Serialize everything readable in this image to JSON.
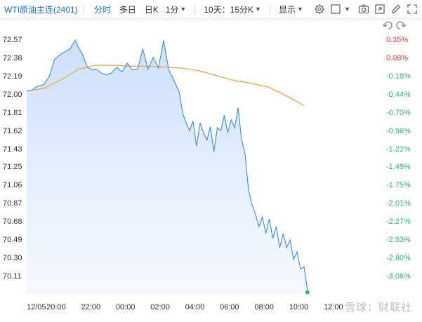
{
  "toolbar": {
    "title": "WTI原油主连(2401)",
    "tabs": [
      {
        "label": "分时",
        "active": true
      },
      {
        "label": "多日",
        "active": false
      },
      {
        "label": "日K",
        "active": false
      }
    ],
    "period_select": "1分",
    "range_select": "10天：15分K",
    "display_select": "显示",
    "icons": [
      "gear-icon",
      "square-checkbox-icon",
      "camera-icon",
      "expand-icon",
      "pencil-icon",
      "fullscreen-icon"
    ]
  },
  "chart_controls": {
    "icons": [
      "undo-icon",
      "redo-icon"
    ]
  },
  "watermark": "雪球：财联社",
  "colors": {
    "price_line": "#3a8ee6",
    "area_fill_top": "#c9ddfb",
    "avg_line": "#f0a040",
    "pct_positive": "#e03c3c",
    "pct_negative": "#2bb673",
    "last_point": "#2bb673",
    "tick_text": "#333333"
  },
  "chart_data": {
    "type": "line",
    "prev_close": 72.32,
    "ylim": [
      69.92,
      72.57
    ],
    "y_ticks": [
      72.57,
      72.38,
      72.19,
      72.0,
      71.81,
      71.62,
      71.43,
      71.25,
      71.06,
      70.87,
      70.68,
      70.49,
      70.3,
      70.11
    ],
    "y_tick_labels": [
      "72.57",
      "72.38",
      "72.19",
      "72.00",
      "71.81",
      "71.62",
      "71.43",
      "71.25",
      "71.06",
      "70.87",
      "70.68",
      "70.49",
      "70.30",
      "70.11"
    ],
    "pct_tick_labels": [
      "0.35%",
      "0.08%",
      "-0.18%",
      "-0.44%",
      "-0.70%",
      "-0.96%",
      "-1.22%",
      "-1.49%",
      "-1.75%",
      "-2.01%",
      "-2.27%",
      "-2.53%",
      "-2.80%",
      "-3.06%"
    ],
    "x_ticks": [
      "12/05",
      "20:00",
      "22:00",
      "00:00",
      "02:00",
      "04:00",
      "06:00",
      "08:00",
      "10:00",
      "12:00"
    ],
    "x_tick_hours": [
      0,
      1.7,
      3.7,
      5.7,
      7.7,
      9.7,
      11.7,
      13.7,
      15.7,
      17.7
    ],
    "x_range_hours": [
      0,
      20.5
    ],
    "series": [
      {
        "key": "price",
        "x": [
          0,
          0.3,
          0.6,
          1.0,
          1.3,
          1.6,
          2.0,
          2.2,
          2.5,
          2.8,
          3.0,
          3.2,
          3.5,
          3.8,
          4.0,
          4.3,
          4.6,
          4.9,
          5.2,
          5.5,
          5.8,
          6.1,
          6.4,
          6.7,
          7.0,
          7.3,
          7.6,
          7.9,
          8.2,
          8.5,
          8.8,
          9.0,
          9.2,
          9.4,
          9.6,
          9.8,
          10.0,
          10.2,
          10.4,
          10.6,
          10.8,
          11.0,
          11.2,
          11.4,
          11.6,
          11.8,
          12.0,
          12.2,
          12.4,
          12.6,
          12.8,
          13.0,
          13.2,
          13.4,
          13.6,
          13.8,
          14.0,
          14.2,
          14.4,
          14.6,
          14.8,
          15.0,
          15.2,
          15.4,
          15.6,
          15.8,
          16.0,
          16.2
        ],
        "values": [
          72.03,
          72.04,
          72.08,
          72.1,
          72.18,
          72.36,
          72.42,
          72.44,
          72.47,
          72.56,
          72.48,
          72.42,
          72.28,
          72.25,
          72.26,
          72.22,
          72.2,
          72.22,
          72.28,
          72.23,
          72.32,
          72.25,
          72.26,
          72.47,
          72.26,
          72.38,
          72.27,
          72.56,
          72.25,
          72.14,
          72.02,
          71.8,
          71.7,
          71.62,
          71.72,
          71.46,
          71.7,
          71.6,
          71.52,
          71.66,
          71.4,
          71.65,
          71.62,
          71.78,
          71.6,
          71.73,
          71.65,
          71.86,
          71.52,
          71.38,
          71.0,
          70.85,
          70.75,
          70.62,
          70.72,
          70.55,
          70.7,
          70.5,
          70.62,
          70.4,
          70.55,
          70.4,
          70.48,
          70.28,
          70.36,
          70.18,
          70.2,
          69.96
        ]
      },
      {
        "key": "average",
        "x": [
          0,
          1,
          2,
          3,
          4,
          5,
          6,
          7,
          8,
          9,
          10,
          11,
          12,
          13,
          14,
          15,
          16
        ],
        "values": [
          72.03,
          72.06,
          72.15,
          72.26,
          72.3,
          72.3,
          72.29,
          72.29,
          72.28,
          72.27,
          72.24,
          72.19,
          72.14,
          72.11,
          72.07,
          71.98,
          71.88
        ]
      }
    ],
    "last_value": 69.96,
    "grid": false,
    "legend": "none"
  }
}
